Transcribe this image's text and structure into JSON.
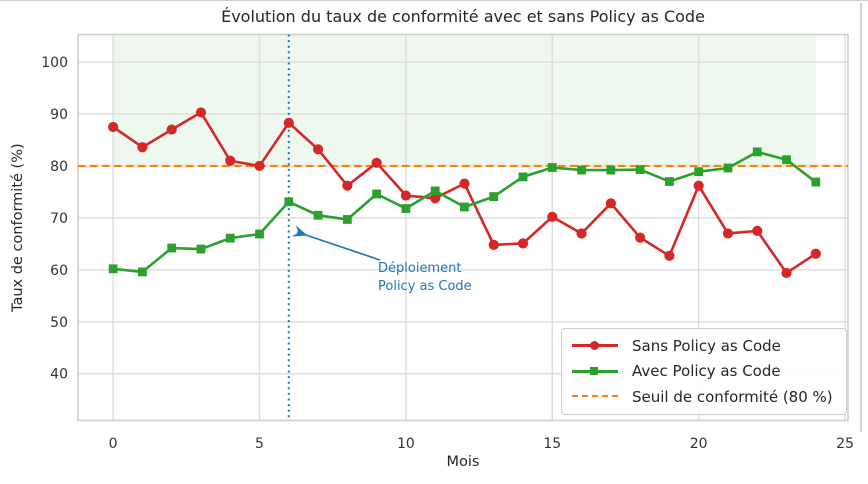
{
  "chart_data": {
    "type": "line",
    "title": "Évolution du taux de conformité avec et sans Policy as Code",
    "xlabel": "Mois",
    "ylabel": "Taux de conformité (%)",
    "x": [
      0,
      1,
      2,
      3,
      4,
      5,
      6,
      7,
      8,
      9,
      10,
      11,
      12,
      13,
      14,
      15,
      16,
      17,
      18,
      19,
      20,
      21,
      22,
      23,
      24
    ],
    "series": [
      {
        "name": "Sans Policy as Code",
        "color": "#d62728",
        "marker": "circle",
        "values": [
          87.5,
          83.6,
          87.0,
          90.3,
          81.0,
          80.0,
          88.3,
          83.2,
          76.2,
          80.6,
          74.3,
          73.8,
          76.6,
          64.8,
          65.1,
          70.2,
          67.0,
          72.8,
          66.2,
          62.7,
          76.2,
          67.0,
          67.5,
          59.4,
          63.1
        ]
      },
      {
        "name": "Avec Policy as Code",
        "color": "#2ca02c",
        "marker": "square",
        "values": [
          60.2,
          59.6,
          64.2,
          64.0,
          66.1,
          66.9,
          73.1,
          70.5,
          69.7,
          74.6,
          71.8,
          75.2,
          72.1,
          74.1,
          77.9,
          79.7,
          79.2,
          79.2,
          79.3,
          77.0,
          78.9,
          79.6,
          82.7,
          81.2,
          76.9
        ]
      }
    ],
    "threshold": {
      "value": 80,
      "color": "#ff7f0e",
      "style": "dashed",
      "label": "Seuil de conformité (80 %)"
    },
    "deployment_line": {
      "x": 6,
      "color": "#1f77b4",
      "style": "dotted"
    },
    "shaded_region": {
      "x0": 0,
      "x1": 24,
      "y_from": 80,
      "to": "top",
      "color": "rgba(44,160,44,0.08)"
    },
    "xlim": [
      -1.2,
      25.1
    ],
    "ylim": [
      31,
      105.3
    ],
    "xticks": [
      0,
      5,
      10,
      15,
      20,
      25
    ],
    "yticks": [
      40,
      50,
      60,
      70,
      80,
      90,
      100
    ],
    "grid": true,
    "legend_position": "lower right"
  },
  "annotation": {
    "line1": "Déploiement",
    "line2": "Policy as Code",
    "color": "#1f77b4"
  },
  "legend": {
    "items": [
      {
        "label": "Sans Policy as Code",
        "color": "#d62728",
        "sample": "line-circle"
      },
      {
        "label": "Avec Policy as Code",
        "color": "#2ca02c",
        "sample": "line-square"
      },
      {
        "label": "Seuil de conformité (80 %)",
        "color": "#ff7f0e",
        "sample": "dashed-line"
      }
    ]
  },
  "style_colors": {
    "grid": "#dcdcdc",
    "spine": "#cfcfd2",
    "tick_text": "#333333",
    "title_text": "#262626"
  }
}
